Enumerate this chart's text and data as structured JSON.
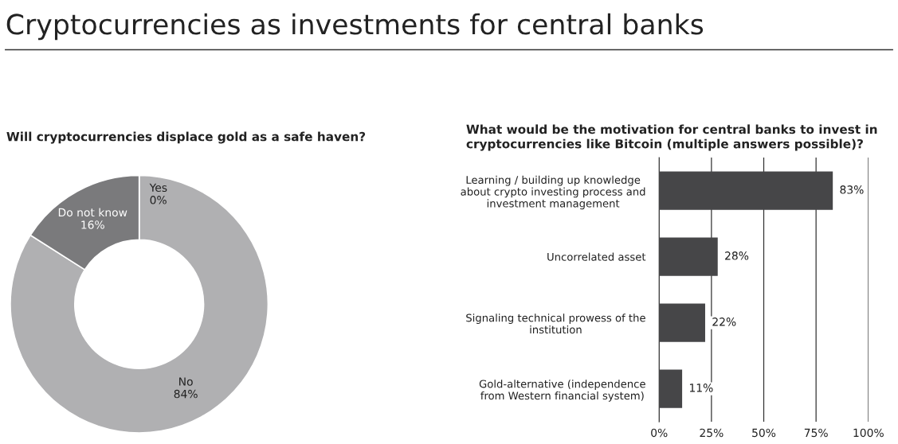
{
  "chart_data": [
    {
      "type": "donut",
      "title": "Cryptocurrencies as investments for central banks",
      "subtitle": "Will cryptocurrencies displace gold as a safe haven?",
      "categories": [
        "Yes",
        "No",
        "Do not know"
      ],
      "values": [
        0,
        84,
        16
      ],
      "colors": [
        "#b0b0b2",
        "#b0b0b2",
        "#7a7a7c"
      ],
      "value_labels": [
        "0%",
        "84%",
        "16%"
      ],
      "legend": false
    },
    {
      "type": "bar",
      "orientation": "horizontal",
      "title": "What would be the motivation for central banks to invest in\ncryptocurrencies like Bitcoin (multiple answers possible)?",
      "categories": [
        "Learning / building up knowledge\nabout crypto investing process and\ninvestment management",
        "Uncorrelated asset",
        "Signaling technical prowess of the\ninstitution",
        "Gold-alternative (independence\nfrom Western financial system)"
      ],
      "values": [
        83,
        28,
        22,
        11
      ],
      "color": "#464648",
      "value_labels": [
        "83%",
        "28%",
        "22%",
        "11%"
      ],
      "xlim": [
        0,
        100
      ],
      "xticks": [
        {
          "value": 0,
          "label": "0%"
        },
        {
          "value": 25,
          "label": "25%"
        },
        {
          "value": 50,
          "label": "50%"
        },
        {
          "value": 75,
          "label": "75%"
        },
        {
          "value": 100,
          "label": "100%"
        }
      ],
      "grid": "x",
      "legend": false
    }
  ]
}
